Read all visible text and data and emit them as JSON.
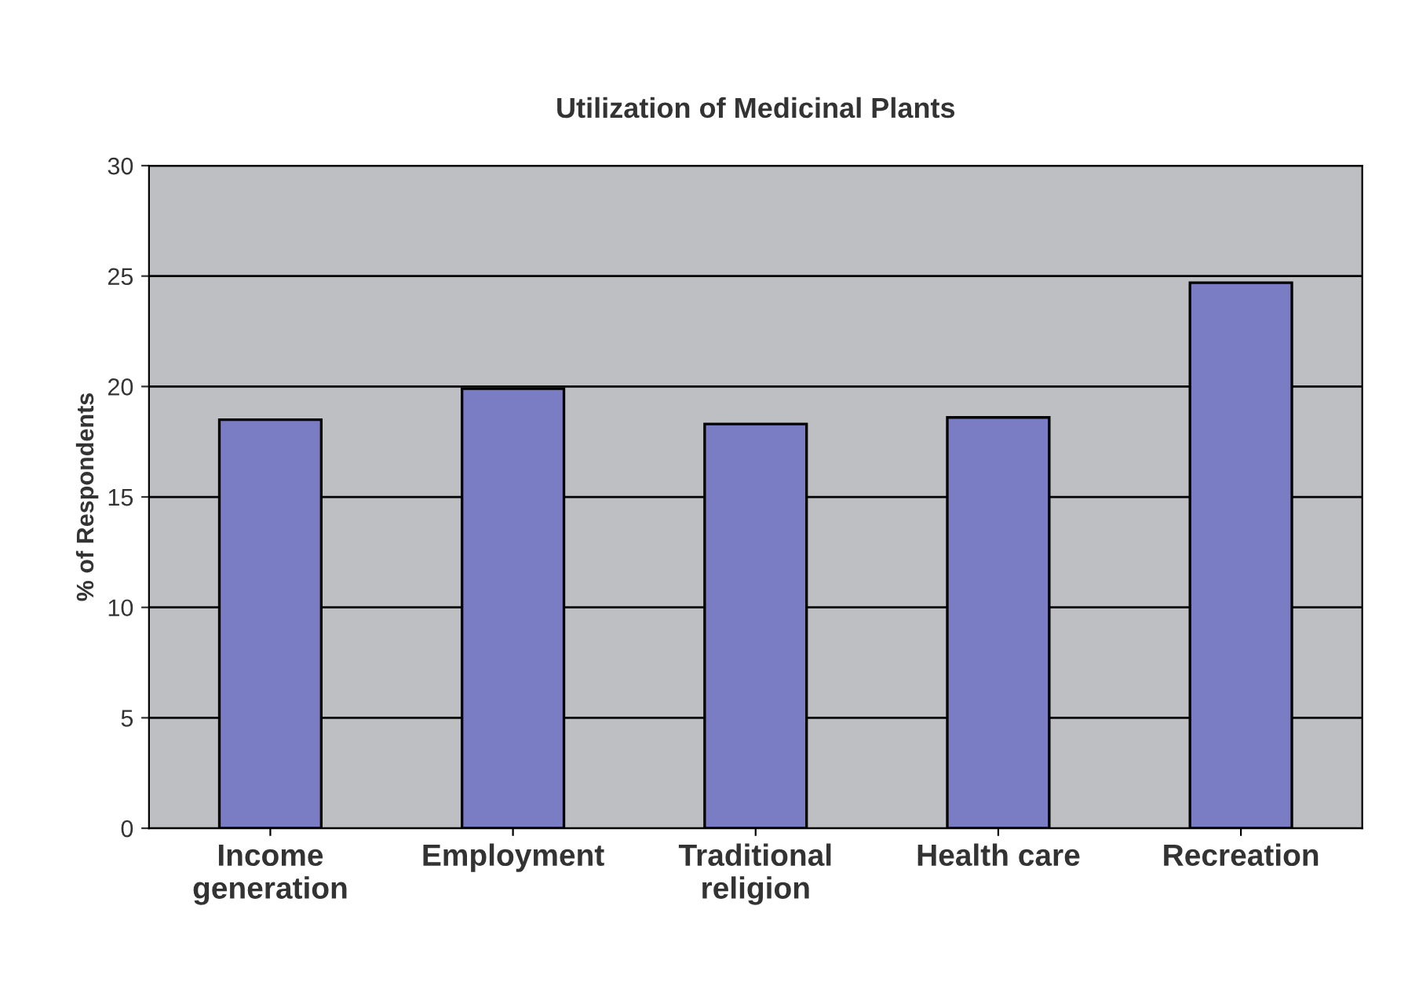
{
  "chart_data": {
    "type": "bar",
    "title": "Utilization of Medicinal Plants",
    "ylabel": "% of Respondents",
    "categories": [
      "Income\ngeneration",
      "Employment",
      "Traditional\nreligion",
      "Health care",
      "Recreation"
    ],
    "values": [
      18.5,
      19.9,
      18.3,
      18.6,
      24.7
    ],
    "color": "#7b7dc4",
    "ylim": [
      0,
      30
    ],
    "yticks": [
      0,
      5,
      10,
      15,
      20,
      25,
      30
    ],
    "grid": "y",
    "legend": false
  }
}
